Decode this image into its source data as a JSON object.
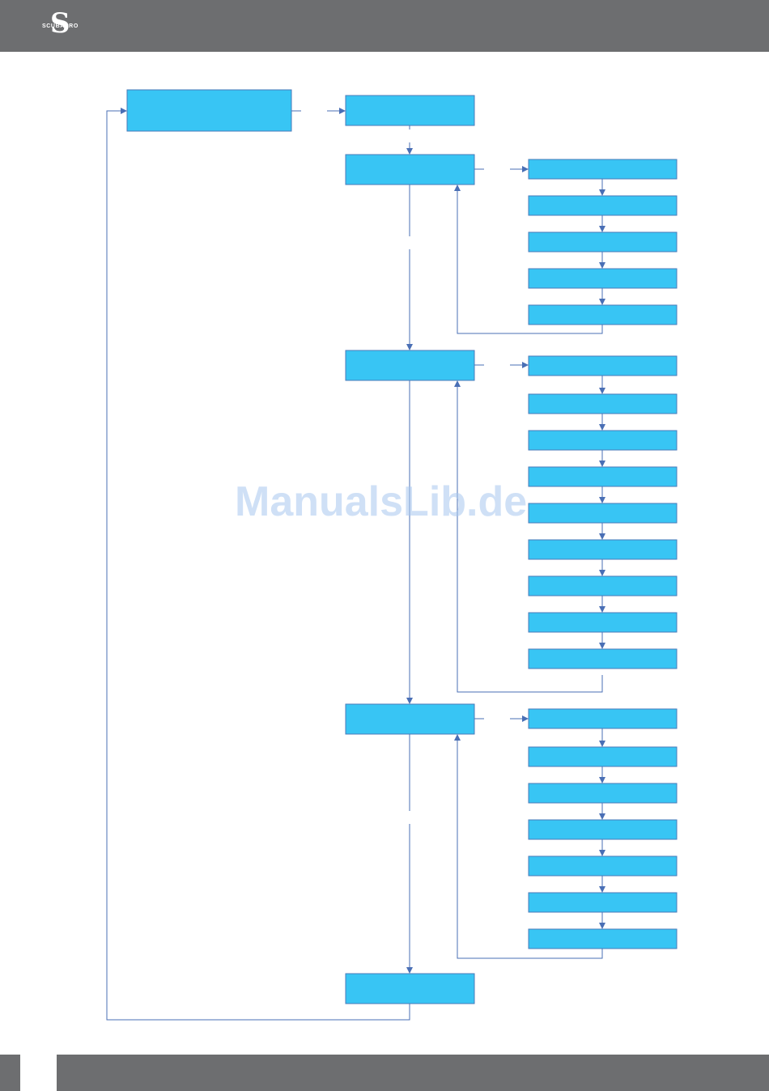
{
  "colors": {
    "header_bg": "#6d6e70",
    "box_fill": "#38c5f4",
    "box_stroke": "#4a7ab8",
    "connector": "#4a6fb5",
    "watermark": "#a9c8ef",
    "footer_page_bg": "#6d6e70"
  },
  "header": {
    "logo_mark": "S",
    "logo_text": "SCUBAPRO",
    "logo_icon": "scubapro-s-logo-icon"
  },
  "diagram": {
    "root_label": "",
    "menu_boxes": [
      "",
      "",
      "",
      "",
      ""
    ],
    "submenu_group_1": [
      "",
      "",
      "",
      "",
      ""
    ],
    "submenu_group_2": [
      "",
      "",
      "",
      "",
      "",
      "",
      "",
      "",
      ""
    ],
    "submenu_group_3": [
      "",
      "",
      "",
      "",
      "",
      "",
      ""
    ]
  },
  "watermark": {
    "text": "ManualsLib.de"
  }
}
